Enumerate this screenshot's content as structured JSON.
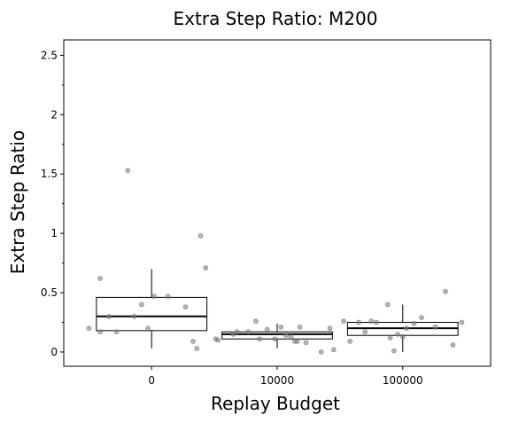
{
  "chart_data": {
    "type": "boxplot",
    "title": "Extra Step Ratio: M200",
    "xlabel": "Replay Budget",
    "ylabel": "Extra Step Ratio",
    "ylim": [
      -0.12,
      2.63
    ],
    "yticks": [
      0,
      0.5,
      1,
      1.5,
      2,
      2.5
    ],
    "ytick_labels": [
      "0",
      "0.5",
      "1",
      "1.5",
      "2",
      "2.5"
    ],
    "xlim": [
      -0.7,
      2.7
    ],
    "categories": [
      "0",
      "10000",
      "100000"
    ],
    "grid": false,
    "colors": {
      "box": "#000000",
      "point": "#808080",
      "median": "#000000"
    },
    "boxes": [
      {
        "category": "0",
        "q1": 0.18,
        "median": 0.3,
        "q3": 0.46,
        "whisker_low": 0.03,
        "whisker_high": 0.7
      },
      {
        "category": "10000",
        "q1": 0.11,
        "median": 0.15,
        "q3": 0.17,
        "whisker_low": 0.03,
        "whisker_high": 0.24
      },
      {
        "category": "100000",
        "q1": 0.14,
        "median": 0.2,
        "q3": 0.25,
        "whisker_low": 0.0,
        "whisker_high": 0.4
      }
    ],
    "points": [
      {
        "category": "0",
        "points": [
          {
            "jitter": -0.5,
            "value": 0.2
          },
          {
            "jitter": -0.41,
            "value": 0.62
          },
          {
            "jitter": -0.41,
            "value": 0.17
          },
          {
            "jitter": -0.34,
            "value": 0.3
          },
          {
            "jitter": -0.28,
            "value": 0.17
          },
          {
            "jitter": -0.19,
            "value": 1.53
          },
          {
            "jitter": -0.14,
            "value": 0.3
          },
          {
            "jitter": -0.08,
            "value": 0.4
          },
          {
            "jitter": -0.03,
            "value": 0.2
          },
          {
            "jitter": 0.02,
            "value": 0.47
          },
          {
            "jitter": 0.13,
            "value": 0.47
          },
          {
            "jitter": 0.27,
            "value": 0.38
          },
          {
            "jitter": 0.33,
            "value": 0.09
          },
          {
            "jitter": 0.36,
            "value": 0.03
          },
          {
            "jitter": 0.39,
            "value": 0.98
          },
          {
            "jitter": 0.43,
            "value": 0.71
          },
          {
            "jitter": 0.51,
            "value": 0.11
          }
        ]
      },
      {
        "category": "10000",
        "points": [
          {
            "jitter": -0.47,
            "value": 0.1
          },
          {
            "jitter": -0.35,
            "value": 0.15
          },
          {
            "jitter": -0.32,
            "value": 0.17
          },
          {
            "jitter": -0.23,
            "value": 0.17
          },
          {
            "jitter": -0.17,
            "value": 0.26
          },
          {
            "jitter": -0.14,
            "value": 0.11
          },
          {
            "jitter": -0.08,
            "value": 0.19
          },
          {
            "jitter": -0.02,
            "value": 0.11
          },
          {
            "jitter": 0.03,
            "value": 0.21
          },
          {
            "jitter": 0.07,
            "value": 0.14
          },
          {
            "jitter": 0.11,
            "value": 0.13
          },
          {
            "jitter": 0.14,
            "value": 0.09
          },
          {
            "jitter": 0.16,
            "value": 0.09
          },
          {
            "jitter": 0.18,
            "value": 0.21
          },
          {
            "jitter": 0.23,
            "value": 0.08
          },
          {
            "jitter": 0.35,
            "value": 0.0
          },
          {
            "jitter": 0.42,
            "value": 0.2
          },
          {
            "jitter": 0.45,
            "value": 0.02
          }
        ]
      },
      {
        "category": "100000",
        "points": [
          {
            "jitter": -0.47,
            "value": 0.26
          },
          {
            "jitter": -0.42,
            "value": 0.09
          },
          {
            "jitter": -0.35,
            "value": 0.25
          },
          {
            "jitter": -0.3,
            "value": 0.17
          },
          {
            "jitter": -0.25,
            "value": 0.26
          },
          {
            "jitter": -0.21,
            "value": 0.25
          },
          {
            "jitter": -0.12,
            "value": 0.4
          },
          {
            "jitter": -0.1,
            "value": 0.12
          },
          {
            "jitter": -0.07,
            "value": 0.01
          },
          {
            "jitter": -0.04,
            "value": 0.15
          },
          {
            "jitter": 0.0,
            "value": 0.13
          },
          {
            "jitter": 0.03,
            "value": 0.2
          },
          {
            "jitter": 0.09,
            "value": 0.24
          },
          {
            "jitter": 0.15,
            "value": 0.29
          },
          {
            "jitter": 0.26,
            "value": 0.21
          },
          {
            "jitter": 0.34,
            "value": 0.51
          },
          {
            "jitter": 0.4,
            "value": 0.06
          },
          {
            "jitter": 0.47,
            "value": 0.25
          }
        ]
      }
    ]
  }
}
